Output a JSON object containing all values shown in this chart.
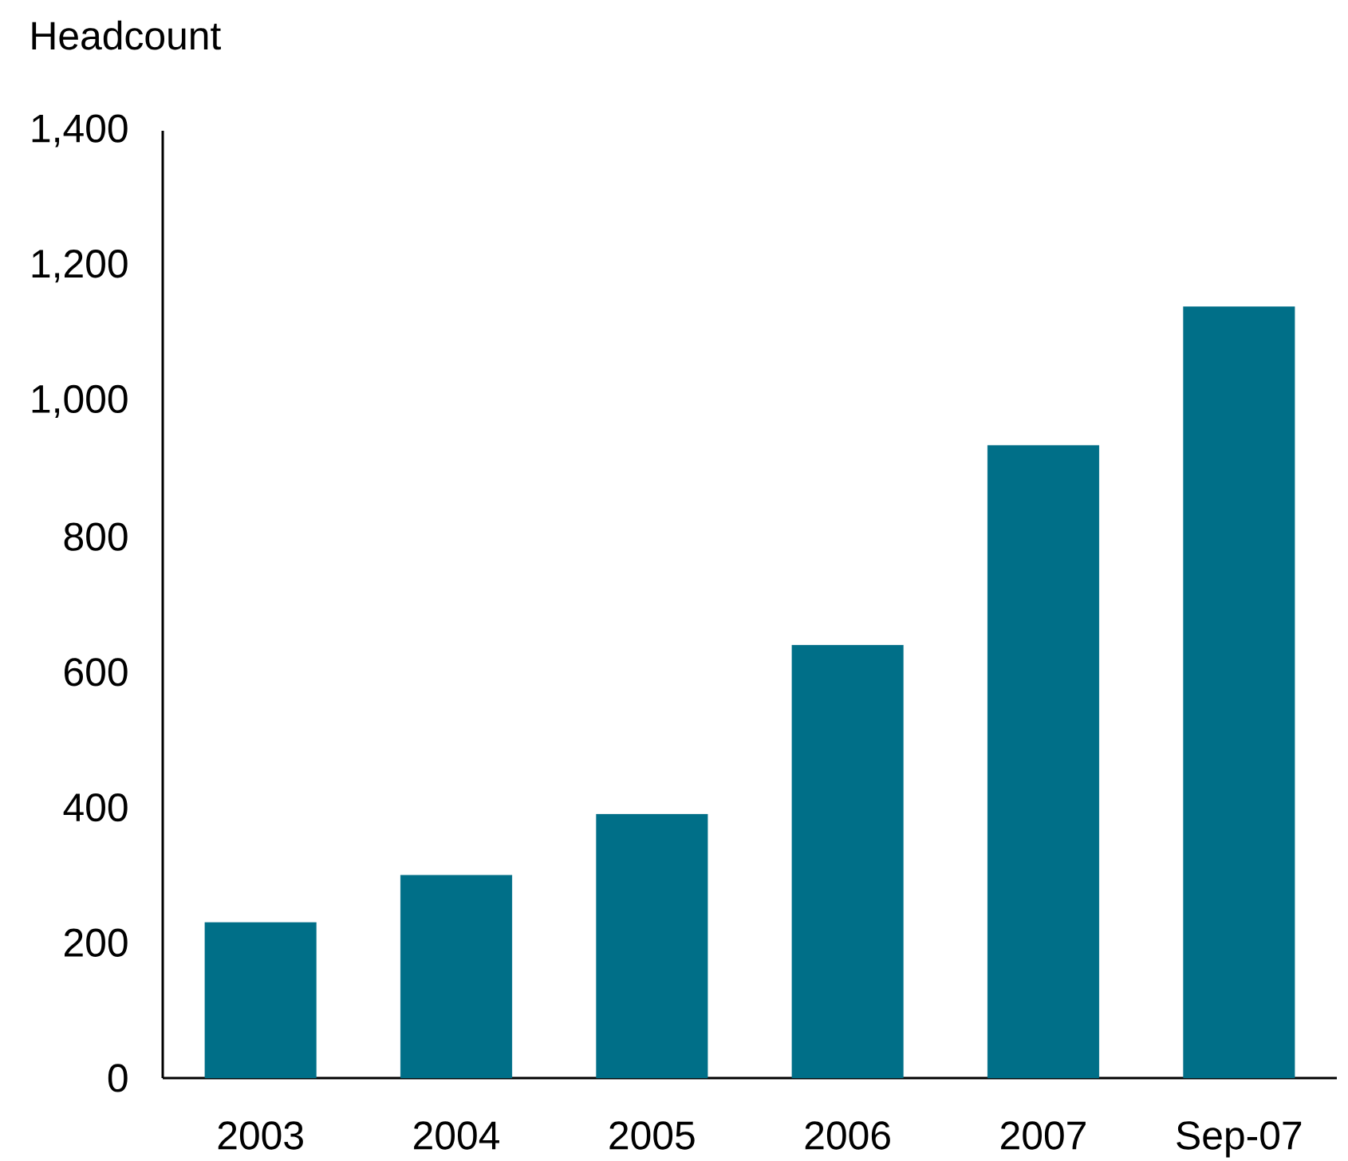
{
  "chart_data": {
    "type": "bar",
    "ylabel": "Headcount",
    "categories": [
      "2003",
      "2004",
      "2005",
      "2006",
      "2007",
      "Sep-07"
    ],
    "values": [
      230,
      300,
      390,
      640,
      935,
      1140
    ],
    "color": "#006f88",
    "ylim": [
      0,
      1400
    ],
    "yticks": [
      0,
      200,
      400,
      600,
      800,
      {
        "value": 1000,
        "label": "1,000"
      },
      {
        "value": 1200,
        "label": "1,200"
      },
      {
        "value": 1400,
        "label": "1,400"
      }
    ]
  }
}
